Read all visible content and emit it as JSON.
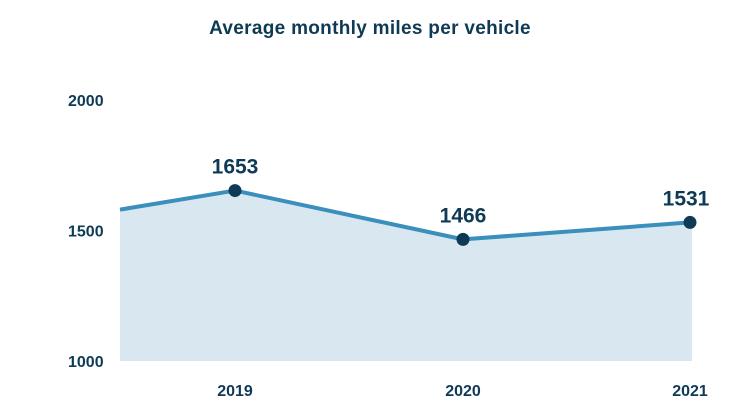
{
  "chart_data": {
    "type": "area",
    "title": "Average monthly miles per vehicle",
    "xlabel": "",
    "ylabel": "",
    "categories": [
      "2019",
      "2020",
      "2021"
    ],
    "series": [
      {
        "values": [
          1653,
          1466,
          1531
        ],
        "data_labels": [
          "1653",
          "1466",
          "1531"
        ]
      }
    ],
    "start_value": 1580,
    "ylim": [
      1000,
      2000
    ],
    "yticks": [
      {
        "value": 1000,
        "label": "1000"
      },
      {
        "value": 1500,
        "label": "1500"
      },
      {
        "value": 2000,
        "label": "2000"
      }
    ],
    "grid": false,
    "legend": "none"
  },
  "colors": {
    "title": "#0f3a55",
    "line": "#3a8fbd",
    "fill": "#d9e8f0",
    "marker": "#0f3a55",
    "label": "#0f3a55"
  }
}
